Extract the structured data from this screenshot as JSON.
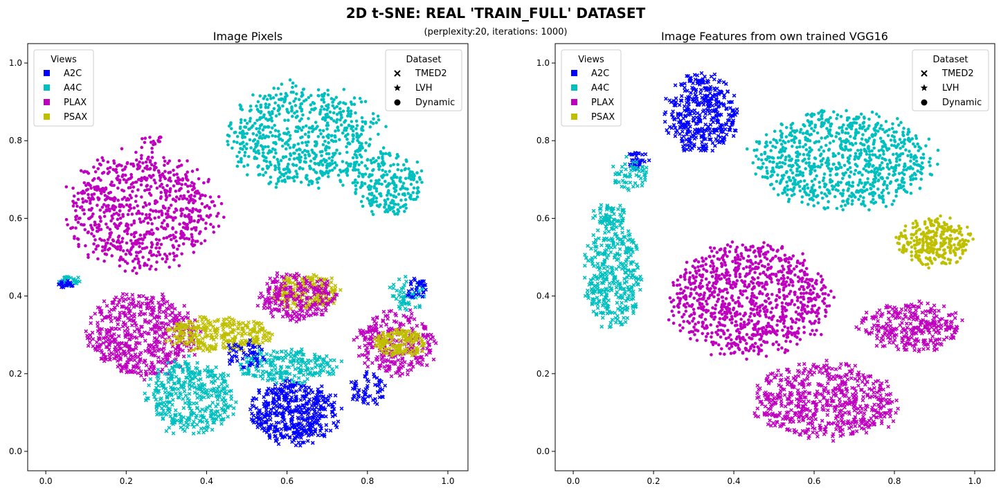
{
  "figure": {
    "title": "2D t-SNE: REAL 'TRAIN_FULL' DATASET",
    "subtitle": "(perplexity:20, iterations: 1000)"
  },
  "legend_views": {
    "title": "Views",
    "items": [
      {
        "label": "A2C",
        "color": "#0000ff"
      },
      {
        "label": "A4C",
        "color": "#00bfbf"
      },
      {
        "label": "PLAX",
        "color": "#bf00bf"
      },
      {
        "label": "PSAX",
        "color": "#bfbf00"
      }
    ]
  },
  "legend_dataset": {
    "title": "Dataset",
    "items": [
      {
        "label": "TMED2",
        "marker": "x"
      },
      {
        "label": "LVH",
        "marker": "star"
      },
      {
        "label": "Dynamic",
        "marker": "circle"
      }
    ]
  },
  "chart_data": [
    {
      "type": "scatter",
      "title": "Image Pixels",
      "xlabel": "",
      "ylabel": "",
      "xlim": [
        -0.045,
        1.05
      ],
      "ylim": [
        -0.05,
        1.05
      ],
      "xticks": [
        "0.0",
        "0.2",
        "0.4",
        "0.6",
        "0.8",
        "1.0"
      ],
      "yticks": [
        "0.0",
        "0.2",
        "0.4",
        "0.6",
        "0.8",
        "1.0"
      ],
      "grid": false,
      "legend_views_position": "upper left",
      "legend_dataset_position": "upper right",
      "clusters": [
        {
          "view": "A4C",
          "marker": "circle",
          "cx": 0.64,
          "cy": 0.81,
          "rx": 0.21,
          "ry": 0.15,
          "n": 700
        },
        {
          "view": "A4C",
          "marker": "circle",
          "cx": 0.85,
          "cy": 0.69,
          "rx": 0.1,
          "ry": 0.09,
          "n": 250
        },
        {
          "view": "PLAX",
          "marker": "circle",
          "cx": 0.24,
          "cy": 0.62,
          "rx": 0.21,
          "ry": 0.17,
          "n": 800
        },
        {
          "view": "A4C",
          "marker": "x",
          "cx": 0.06,
          "cy": 0.44,
          "rx": 0.03,
          "ry": 0.015,
          "n": 30
        },
        {
          "view": "A2C",
          "marker": "x",
          "cx": 0.05,
          "cy": 0.43,
          "rx": 0.025,
          "ry": 0.01,
          "n": 20
        },
        {
          "view": "PLAX",
          "marker": "x",
          "cx": 0.24,
          "cy": 0.3,
          "rx": 0.15,
          "ry": 0.12,
          "n": 550
        },
        {
          "view": "PSAX",
          "marker": "x",
          "cx": 0.43,
          "cy": 0.3,
          "rx": 0.15,
          "ry": 0.05,
          "n": 300
        },
        {
          "view": "PSAX",
          "marker": "x",
          "cx": 0.65,
          "cy": 0.41,
          "rx": 0.09,
          "ry": 0.05,
          "n": 200
        },
        {
          "view": "PLAX",
          "marker": "x",
          "cx": 0.62,
          "cy": 0.4,
          "rx": 0.11,
          "ry": 0.07,
          "n": 220
        },
        {
          "view": "A4C",
          "marker": "x",
          "cx": 0.36,
          "cy": 0.14,
          "rx": 0.12,
          "ry": 0.11,
          "n": 380
        },
        {
          "view": "A2C",
          "marker": "x",
          "cx": 0.62,
          "cy": 0.1,
          "rx": 0.12,
          "ry": 0.09,
          "n": 450
        },
        {
          "view": "A4C",
          "marker": "x",
          "cx": 0.6,
          "cy": 0.22,
          "rx": 0.14,
          "ry": 0.05,
          "n": 220
        },
        {
          "view": "PLAX",
          "marker": "x",
          "cx": 0.87,
          "cy": 0.28,
          "rx": 0.11,
          "ry": 0.09,
          "n": 280
        },
        {
          "view": "PSAX",
          "marker": "x",
          "cx": 0.88,
          "cy": 0.28,
          "rx": 0.07,
          "ry": 0.04,
          "n": 160
        },
        {
          "view": "A4C",
          "marker": "x",
          "cx": 0.9,
          "cy": 0.41,
          "rx": 0.05,
          "ry": 0.05,
          "n": 60
        },
        {
          "view": "A2C",
          "marker": "x",
          "cx": 0.92,
          "cy": 0.42,
          "rx": 0.03,
          "ry": 0.03,
          "n": 30
        },
        {
          "view": "A2C",
          "marker": "x",
          "cx": 0.8,
          "cy": 0.16,
          "rx": 0.05,
          "ry": 0.05,
          "n": 60
        },
        {
          "view": "A2C",
          "marker": "x",
          "cx": 0.5,
          "cy": 0.25,
          "rx": 0.06,
          "ry": 0.04,
          "n": 50
        },
        {
          "view": "PLAX",
          "marker": "circle",
          "cx": 0.27,
          "cy": 0.8,
          "rx": 0.04,
          "ry": 0.015,
          "n": 15
        }
      ]
    },
    {
      "type": "scatter",
      "title": "Image Features from own trained VGG16",
      "xlabel": "",
      "ylabel": "",
      "xlim": [
        -0.045,
        1.05
      ],
      "ylim": [
        -0.05,
        1.05
      ],
      "xticks": [
        "0.0",
        "0.2",
        "0.4",
        "0.6",
        "0.8",
        "1.0"
      ],
      "yticks": [
        "0.0",
        "0.2",
        "0.4",
        "0.6",
        "0.8",
        "1.0"
      ],
      "grid": false,
      "legend_views_position": "upper left",
      "legend_dataset_position": "upper right",
      "clusters": [
        {
          "view": "A2C",
          "marker": "x",
          "cx": 0.32,
          "cy": 0.87,
          "rx": 0.1,
          "ry": 0.11,
          "n": 400
        },
        {
          "view": "A2C",
          "marker": "x",
          "cx": 0.16,
          "cy": 0.75,
          "rx": 0.03,
          "ry": 0.03,
          "n": 40
        },
        {
          "view": "A4C",
          "marker": "circle",
          "cx": 0.67,
          "cy": 0.75,
          "rx": 0.25,
          "ry": 0.14,
          "n": 900
        },
        {
          "view": "A4C",
          "marker": "x",
          "cx": 0.1,
          "cy": 0.45,
          "rx": 0.08,
          "ry": 0.15,
          "n": 350
        },
        {
          "view": "A4C",
          "marker": "x",
          "cx": 0.14,
          "cy": 0.71,
          "rx": 0.05,
          "ry": 0.05,
          "n": 60
        },
        {
          "view": "A4C",
          "marker": "x",
          "cx": 0.09,
          "cy": 0.61,
          "rx": 0.05,
          "ry": 0.03,
          "n": 60
        },
        {
          "view": "PLAX",
          "marker": "circle",
          "cx": 0.44,
          "cy": 0.39,
          "rx": 0.22,
          "ry": 0.16,
          "n": 1000
        },
        {
          "view": "PLAX",
          "marker": "x",
          "cx": 0.63,
          "cy": 0.13,
          "rx": 0.2,
          "ry": 0.11,
          "n": 600
        },
        {
          "view": "PLAX",
          "marker": "x",
          "cx": 0.84,
          "cy": 0.32,
          "rx": 0.14,
          "ry": 0.07,
          "n": 300
        },
        {
          "view": "PSAX",
          "marker": "circle",
          "cx": 0.9,
          "cy": 0.54,
          "rx": 0.1,
          "ry": 0.07,
          "n": 300
        }
      ]
    }
  ]
}
